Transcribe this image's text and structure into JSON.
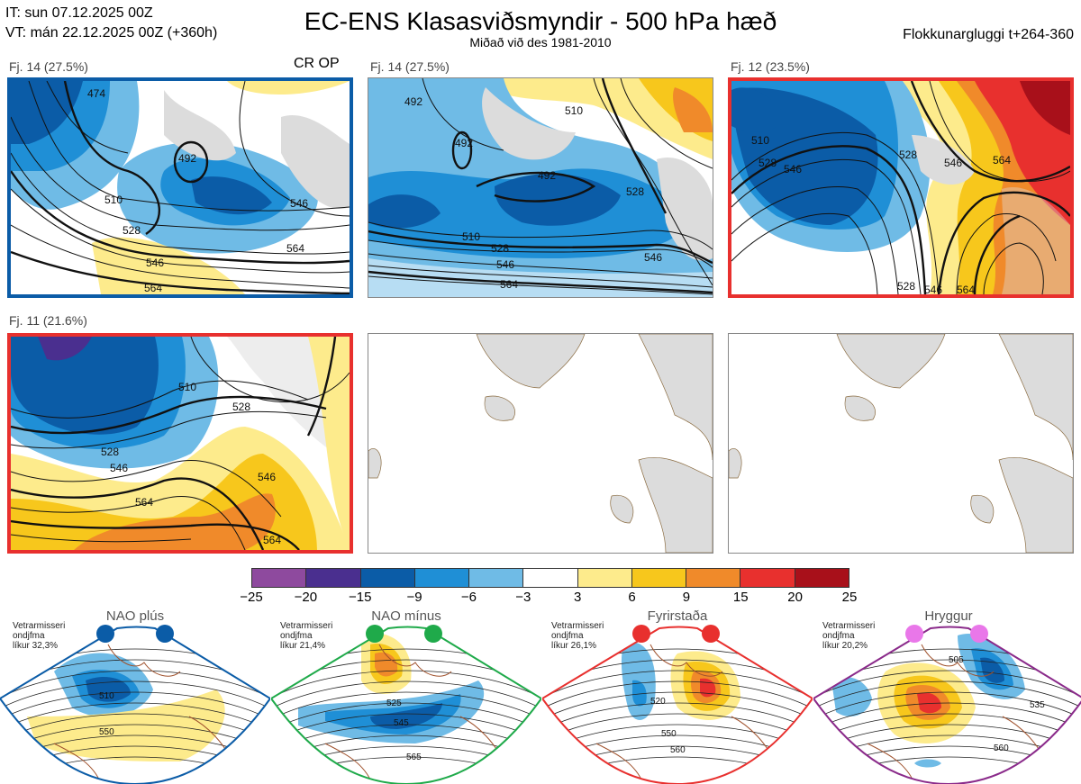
{
  "header": {
    "init_line": "IT: sun 07.12.2025 00Z",
    "valid_line": "VT: mán 22.12.2025 00Z  (+360h)",
    "title": "EC-ENS Klasasviðsmyndir - 500 hPa hæð",
    "subtitle": "Miðað við des 1981-2010",
    "window": "Flokkunargluggi t+264-360"
  },
  "panels": [
    {
      "label": "Fj. 14 (27.5%)",
      "tag": "CR OP",
      "frame_color": "#0b5ca7",
      "contours": [
        "474",
        "492",
        "510",
        "528",
        "546",
        "564"
      ]
    },
    {
      "label": "Fj. 14 (27.5%)",
      "tag": "",
      "frame_color": "#0b5ca7",
      "contours": [
        "492",
        "492",
        "510",
        "528",
        "546",
        "564"
      ]
    },
    {
      "label": "Fj. 12 (23.5%)",
      "tag": "",
      "frame_color": "#e8302e",
      "contours": [
        "510",
        "528",
        "546",
        "564"
      ]
    },
    {
      "label": "Fj. 11 (21.6%)",
      "tag": "",
      "frame_color": "#e8302e",
      "contours": [
        "510",
        "528",
        "546",
        "564"
      ]
    }
  ],
  "colorbar": {
    "ticks": [
      "−25",
      "−20",
      "−15",
      "−9",
      "−6",
      "−3",
      "3",
      "6",
      "9",
      "15",
      "20",
      "25"
    ],
    "colors": [
      "#8e4a9e",
      "#4a2f8f",
      "#0b5ca7",
      "#1f8fd6",
      "#6fbbe6",
      "#ffffff",
      "#fdeb8c",
      "#f7c71c",
      "#f08a2a",
      "#e8302e",
      "#a8101a"
    ]
  },
  "regimes": [
    {
      "name": "NAO plús",
      "note_1": "Vetrarmisseri",
      "note_2": "ondjfma",
      "note_3": "líkur 32,3%",
      "dot_color": "#0b5ca7",
      "frame_color": "#0b5ca7",
      "contours": [
        "510",
        "550"
      ]
    },
    {
      "name": "NAO mínus",
      "note_1": "Vetrarmisseri",
      "note_2": "ondjfma",
      "note_3": "líkur 21,4%",
      "dot_color": "#1faa4a",
      "frame_color": "#1faa4a",
      "contours": [
        "525",
        "545",
        "565"
      ]
    },
    {
      "name": "Fyrirstaða",
      "note_1": "Vetrarmisseri",
      "note_2": "ondjfma",
      "note_3": "líkur 26,1%",
      "dot_color": "#e8302e",
      "frame_color": "#e8302e",
      "contours": [
        "520",
        "550",
        "560"
      ]
    },
    {
      "name": "Hryggur",
      "note_1": "Vetrarmisseri",
      "note_2": "ondjfma",
      "note_3": "líkur 20,2%",
      "dot_color": "#e977e9",
      "frame_color": "#8a2a8a",
      "contours": [
        "505",
        "535",
        "560"
      ]
    }
  ]
}
